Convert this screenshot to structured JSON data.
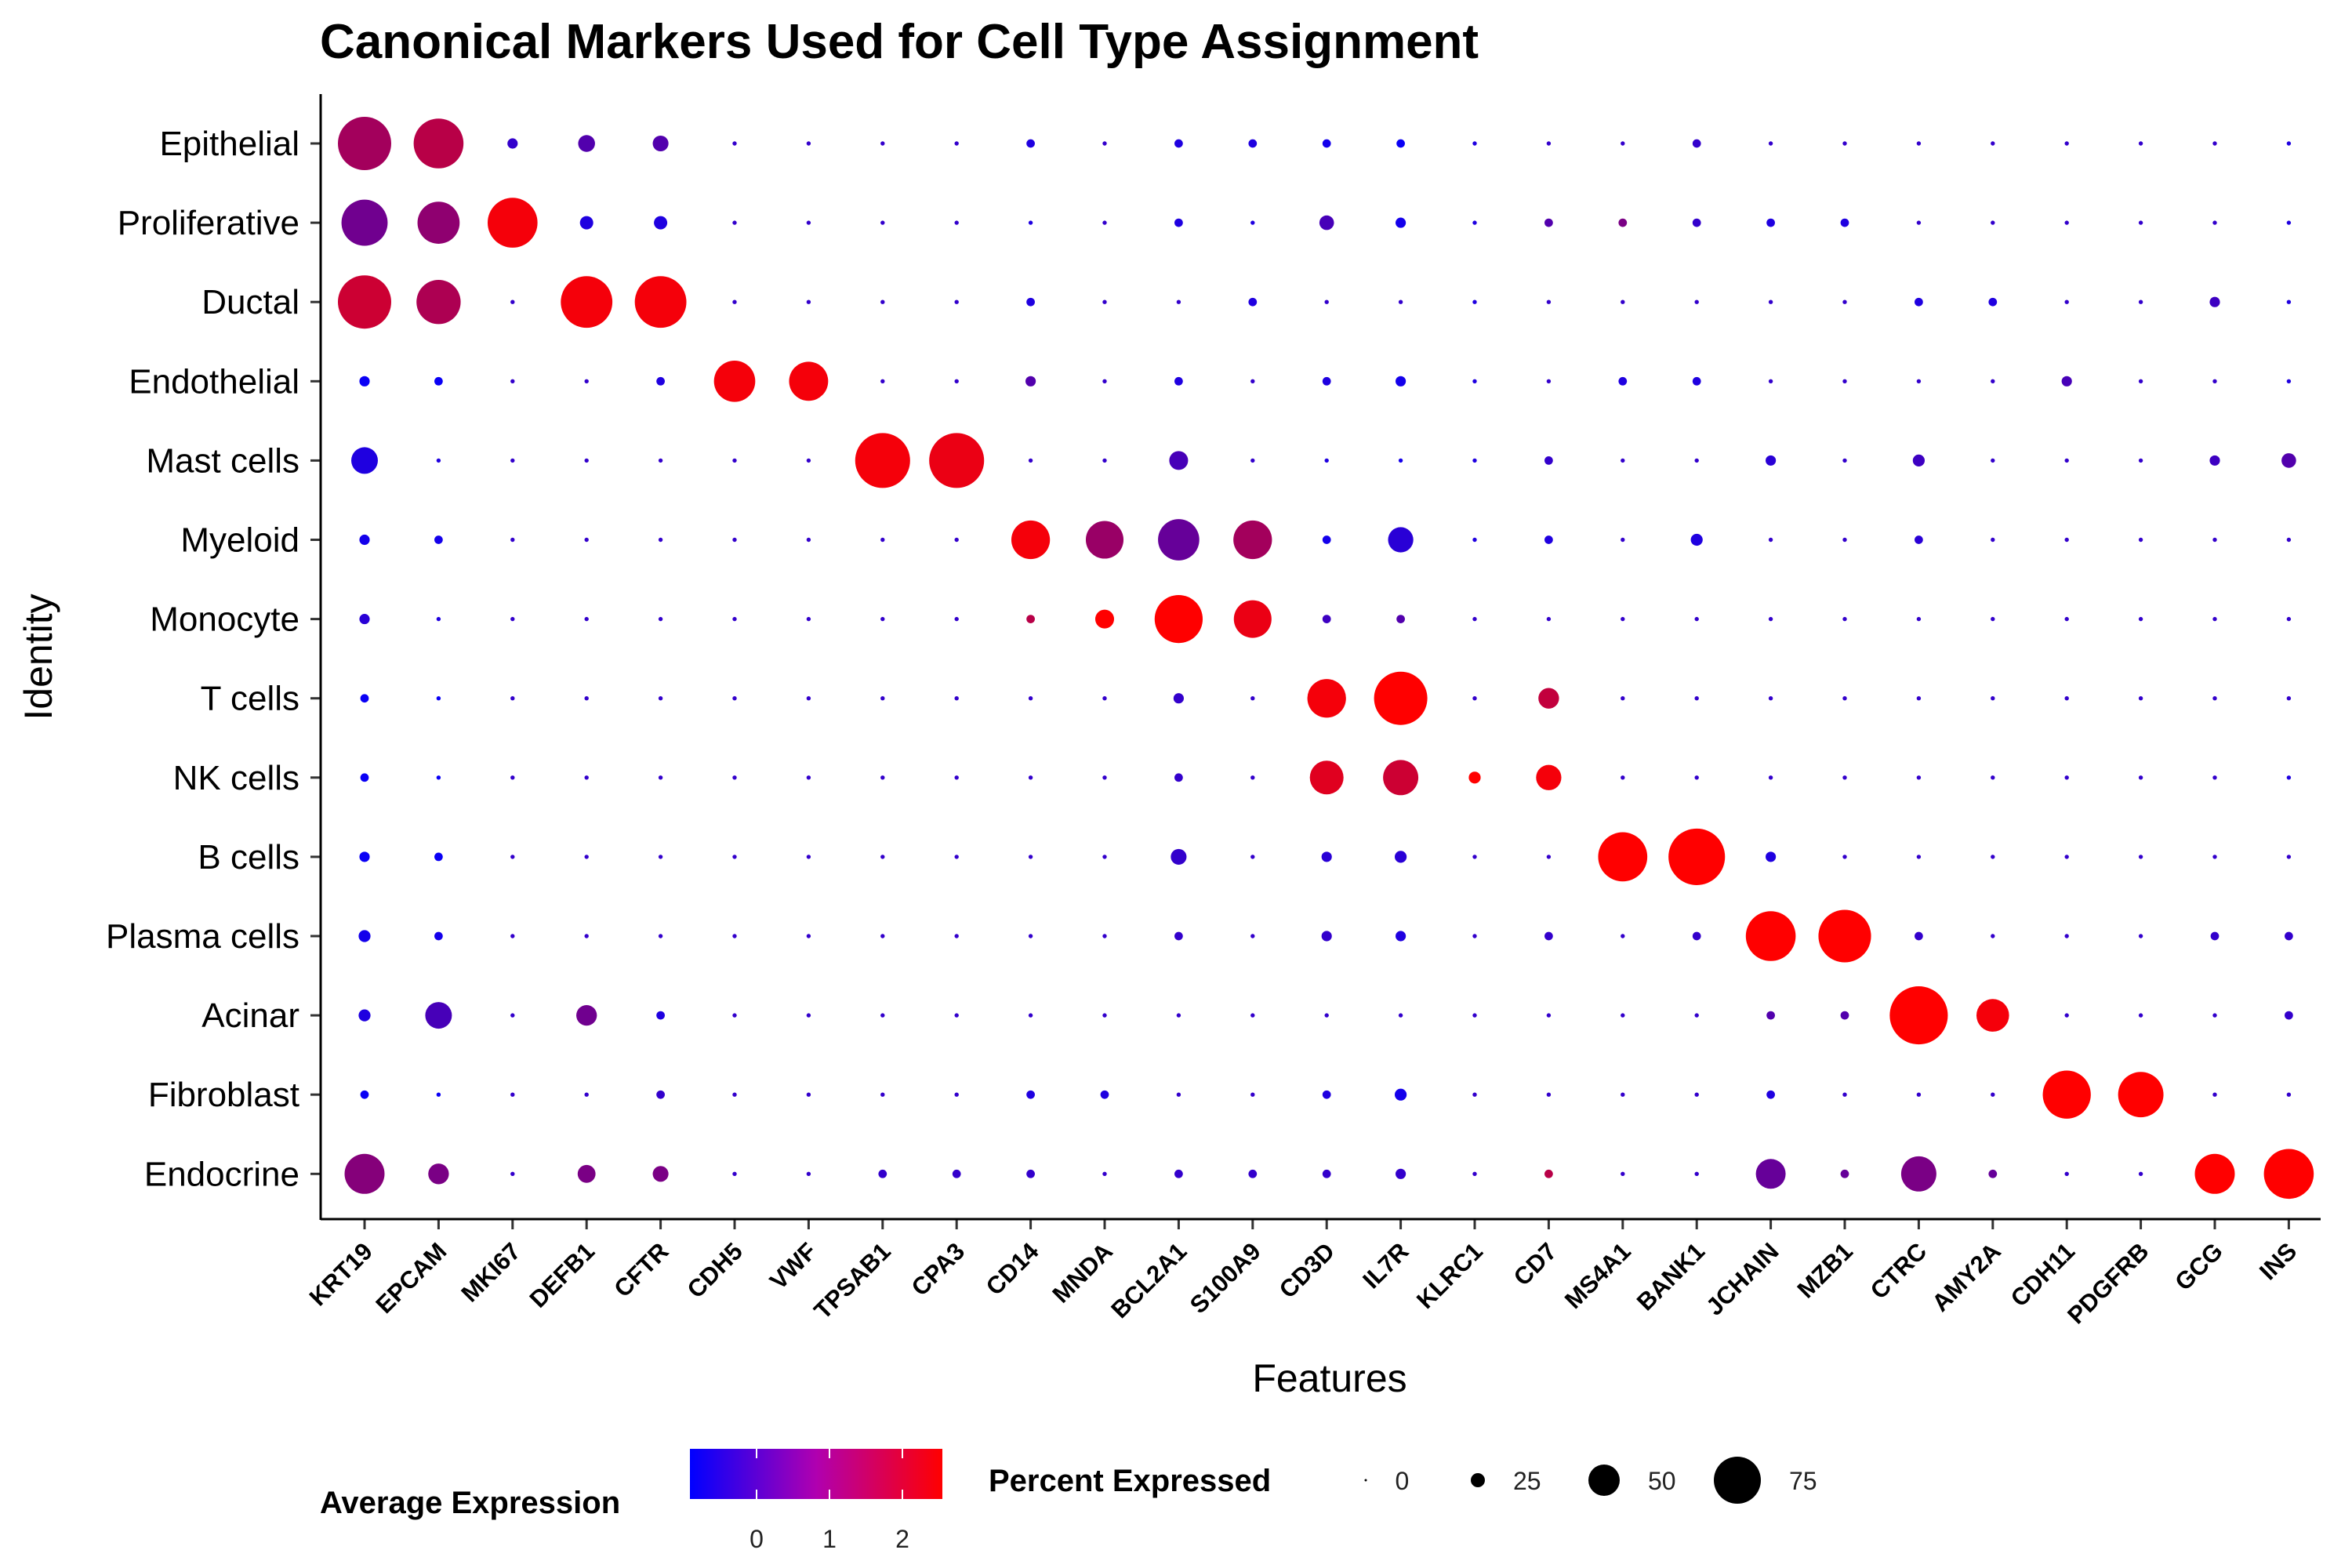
{
  "chart_data": {
    "type": "dotplot",
    "title": "Canonical Markers Used for Cell Type Assignment",
    "xlabel": "Features",
    "ylabel": "Identity",
    "features": [
      "KRT19",
      "EPCAM",
      "MKI67",
      "DEFB1",
      "CFTR",
      "CDH5",
      "VWF",
      "TPSAB1",
      "CPA3",
      "CD14",
      "MNDA",
      "BCL2A1",
      "S100A9",
      "CD3D",
      "IL7R",
      "KLRC1",
      "CD7",
      "MS4A1",
      "BANK1",
      "JCHAIN",
      "MZB1",
      "CTRC",
      "AMY2A",
      "CDH11",
      "PDGFRB",
      "GCG",
      "INS"
    ],
    "identities": [
      "Epithelial",
      "Proliferative",
      "Ductal",
      "Endothelial",
      "Mast cells",
      "Myeloid",
      "Monocyte",
      "T cells",
      "NK cells",
      "B cells",
      "Plasma cells",
      "Acinar",
      "Fibroblast",
      "Endocrine"
    ],
    "percent_expressed": [
      [
        80,
        70,
        3,
        8,
        7,
        0.5,
        0.5,
        0.5,
        0.5,
        2,
        0.5,
        2,
        2,
        2,
        2,
        0.5,
        0.5,
        0.5,
        2,
        0.5,
        0.5,
        0.5,
        0.5,
        0.5,
        0.5,
        0.5,
        0.5
      ],
      [
        60,
        50,
        70,
        5,
        5,
        0.5,
        0.5,
        0.5,
        0.5,
        0.5,
        0.5,
        2,
        0.5,
        6,
        3,
        0.5,
        2,
        2,
        2,
        2,
        2,
        0.5,
        0.5,
        0.5,
        0.5,
        0.5,
        0.5
      ],
      [
        80,
        55,
        0.5,
        75,
        75,
        0.5,
        0.5,
        0.5,
        0.5,
        2,
        0.5,
        0.5,
        2,
        0.5,
        0.5,
        0.5,
        0.5,
        0.5,
        0.5,
        0.5,
        0.5,
        2,
        2,
        0.5,
        0.5,
        3,
        0.5
      ],
      [
        3,
        2,
        0.5,
        0.5,
        2,
        48,
        43,
        0.5,
        0.5,
        3,
        0.5,
        2,
        0.5,
        2,
        3,
        0.5,
        0.5,
        2,
        2,
        0.5,
        0.5,
        0.5,
        0.5,
        3,
        0.5,
        0.5,
        0.5
      ],
      [
        20,
        0.5,
        0.5,
        0.5,
        0.5,
        0.5,
        0.5,
        85,
        85,
        0.5,
        0.5,
        10,
        0.5,
        0.5,
        0.5,
        0.5,
        2,
        0.5,
        0.5,
        3,
        0.5,
        4,
        0.5,
        0.5,
        0.5,
        3,
        6
      ],
      [
        3,
        2,
        0.5,
        0.5,
        0.5,
        0.5,
        0.5,
        0.5,
        0.5,
        42,
        40,
        48,
        42,
        2,
        18,
        0.5,
        2,
        0.5,
        4,
        0.5,
        0.5,
        2,
        0.5,
        0.5,
        0.5,
        0.5,
        0.5
      ],
      [
        3,
        0.5,
        0.5,
        0.5,
        0.5,
        0.5,
        0.5,
        0.5,
        0.5,
        2,
        10,
        65,
        40,
        2,
        2,
        0.5,
        0.5,
        0.5,
        0.5,
        0.5,
        0.5,
        0.5,
        0.5,
        0.5,
        0.5,
        0.5,
        0.5
      ],
      [
        2,
        0.5,
        0.5,
        0.5,
        0.5,
        0.5,
        0.5,
        0.5,
        0.5,
        0.5,
        0.5,
        3,
        0.5,
        42,
        80,
        0.5,
        12,
        0.5,
        0.5,
        0.5,
        0.5,
        0.5,
        0.5,
        0.5,
        0.5,
        0.5,
        0.5
      ],
      [
        2,
        0.5,
        0.5,
        0.5,
        0.5,
        0.5,
        0.5,
        0.5,
        0.5,
        0.5,
        0.5,
        2,
        0.5,
        32,
        35,
        4,
        18,
        0.5,
        0.5,
        0.5,
        0.5,
        0.5,
        0.5,
        0.5,
        0.5,
        0.5,
        0.5
      ],
      [
        3,
        2,
        0.5,
        0.5,
        0.5,
        0.5,
        0.5,
        0.5,
        0.5,
        0.5,
        0.5,
        7,
        0.5,
        3,
        4,
        0.5,
        0.5,
        68,
        90,
        3,
        0.5,
        0.5,
        0.5,
        0.5,
        0.5,
        0.5,
        0.5
      ],
      [
        4,
        2,
        0.5,
        0.5,
        0.5,
        0.5,
        0.5,
        0.5,
        0.5,
        0.5,
        0.5,
        2,
        0.5,
        3,
        3,
        0.5,
        2,
        0.5,
        2,
        70,
        78,
        2,
        0.5,
        0.5,
        0.5,
        2,
        2
      ],
      [
        4,
        20,
        0.5,
        12,
        2,
        0.5,
        0.5,
        0.5,
        0.5,
        0.5,
        0.5,
        0.5,
        0.5,
        0.5,
        0.5,
        0.5,
        0.5,
        0.5,
        0.5,
        2,
        2,
        95,
        30,
        0.5,
        0.5,
        0.5,
        2
      ],
      [
        2,
        0.5,
        0.5,
        0.5,
        2,
        0.5,
        0.5,
        0.5,
        0.5,
        2,
        2,
        0.5,
        0.5,
        2,
        4,
        0.5,
        0.5,
        0.5,
        0.5,
        2,
        0.5,
        0.5,
        0.5,
        65,
        58,
        0.5,
        0.5
      ],
      [
        45,
        12,
        0.5,
        9,
        7,
        0.5,
        0.5,
        2,
        2,
        2,
        0.5,
        2,
        2,
        2,
        3,
        0.5,
        2,
        0.5,
        0.5,
        25,
        2,
        35,
        2,
        0.5,
        0.5,
        45,
        70
      ]
    ],
    "average_expression": [
      [
        1.6,
        1.8,
        0.5,
        0.8,
        0.8,
        0.5,
        0.5,
        0.5,
        0.5,
        0.3,
        0.5,
        0.3,
        0.3,
        0.2,
        0.1,
        0.3,
        0.5,
        0.5,
        0.5,
        0.5,
        0.5,
        0.5,
        0.5,
        0.5,
        0.5,
        0.5,
        0.3
      ],
      [
        1.1,
        1.4,
        2.4,
        0.3,
        0.3,
        0.5,
        0.5,
        0.5,
        0.5,
        0.3,
        0.5,
        0.3,
        0.3,
        0.7,
        0.2,
        0.3,
        0.8,
        1.2,
        0.5,
        0.3,
        0.3,
        0.5,
        0.5,
        0.5,
        0.5,
        0.5,
        0.3
      ],
      [
        2.0,
        1.7,
        0.5,
        2.4,
        2.4,
        0.5,
        0.5,
        0.5,
        0.5,
        0.3,
        0.5,
        0.5,
        0.3,
        0.5,
        0.5,
        0.3,
        0.5,
        0.5,
        0.5,
        0.5,
        0.5,
        0.3,
        0.3,
        0.5,
        0.5,
        0.6,
        0.3
      ],
      [
        0.1,
        0.1,
        0.5,
        0.5,
        0.3,
        2.4,
        2.4,
        0.5,
        0.5,
        0.8,
        0.5,
        0.3,
        0.5,
        0.3,
        0.2,
        0.3,
        0.5,
        0.3,
        0.3,
        0.5,
        0.5,
        0.5,
        0.5,
        0.7,
        0.5,
        0.5,
        0.3
      ],
      [
        0.3,
        0.3,
        0.5,
        0.5,
        0.5,
        0.5,
        0.5,
        2.4,
        2.3,
        0.5,
        0.5,
        0.7,
        0.5,
        0.3,
        0.2,
        0.3,
        0.5,
        0.5,
        0.5,
        0.4,
        0.5,
        0.6,
        0.5,
        0.5,
        0.5,
        0.6,
        0.8
      ],
      [
        0.2,
        0.2,
        0.5,
        0.5,
        0.5,
        0.5,
        0.5,
        0.5,
        0.5,
        2.4,
        1.5,
        1.0,
        1.6,
        0.2,
        0.4,
        0.3,
        0.3,
        0.5,
        0.3,
        0.5,
        0.5,
        0.4,
        0.5,
        0.5,
        0.5,
        0.5,
        0.5
      ],
      [
        0.4,
        0.3,
        0.5,
        0.5,
        0.5,
        0.5,
        0.5,
        0.5,
        0.5,
        1.8,
        2.5,
        2.5,
        2.3,
        0.6,
        0.8,
        0.5,
        0.5,
        0.5,
        0.5,
        0.5,
        0.5,
        0.5,
        0.5,
        0.5,
        0.5,
        0.5,
        0.5
      ],
      [
        0.1,
        0.1,
        0.5,
        0.5,
        0.5,
        0.5,
        0.5,
        0.5,
        0.5,
        0.5,
        0.5,
        0.5,
        0.5,
        2.4,
        2.5,
        0.5,
        1.9,
        0.5,
        0.5,
        0.5,
        0.5,
        0.5,
        0.5,
        0.5,
        0.5,
        0.5,
        0.5
      ],
      [
        0.1,
        0.1,
        0.5,
        0.5,
        0.5,
        0.5,
        0.5,
        0.5,
        0.5,
        0.5,
        0.5,
        0.5,
        0.5,
        2.2,
        2.0,
        2.5,
        2.4,
        0.5,
        0.5,
        0.5,
        0.5,
        0.5,
        0.5,
        0.5,
        0.5,
        0.5,
        0.3
      ],
      [
        0.1,
        0.1,
        0.5,
        0.5,
        0.5,
        0.5,
        0.5,
        0.5,
        0.5,
        0.5,
        0.5,
        0.5,
        0.5,
        0.4,
        0.4,
        0.5,
        0.5,
        2.5,
        2.5,
        0.3,
        0.5,
        0.5,
        0.5,
        0.5,
        0.5,
        0.5,
        0.5
      ],
      [
        0.2,
        0.2,
        0.5,
        0.5,
        0.5,
        0.5,
        0.5,
        0.5,
        0.5,
        0.5,
        0.5,
        0.5,
        0.5,
        0.5,
        0.3,
        0.5,
        0.5,
        0.5,
        0.5,
        2.5,
        2.5,
        0.5,
        0.5,
        0.5,
        0.5,
        0.5,
        0.5
      ],
      [
        0.3,
        0.7,
        0.5,
        1.1,
        0.3,
        0.5,
        0.5,
        0.5,
        0.5,
        0.5,
        0.5,
        0.5,
        0.5,
        0.5,
        0.5,
        0.5,
        0.5,
        0.5,
        0.5,
        0.8,
        0.8,
        2.5,
        2.4,
        0.5,
        0.5,
        0.5,
        0.5
      ],
      [
        0.1,
        0.1,
        0.5,
        0.5,
        0.5,
        0.5,
        0.5,
        0.5,
        0.5,
        0.3,
        0.3,
        0.5,
        0.5,
        0.3,
        0.2,
        0.5,
        0.5,
        0.5,
        0.5,
        0.3,
        0.5,
        0.5,
        0.5,
        2.5,
        2.5,
        0.5,
        0.5
      ],
      [
        1.3,
        1.2,
        0.5,
        1.2,
        1.2,
        0.5,
        0.5,
        0.5,
        0.5,
        0.5,
        0.5,
        0.5,
        0.5,
        0.5,
        0.5,
        0.5,
        1.8,
        0.5,
        0.5,
        1.0,
        1.0,
        1.2,
        1.0,
        0.5,
        0.5,
        2.5,
        2.5
      ]
    ],
    "color_legend": {
      "title": "Average Expression",
      "ticks": [
        "0",
        "1",
        "2"
      ],
      "low_color": "#0000ff",
      "high_color": "#ff0000"
    },
    "size_legend": {
      "title": "Percent Expressed",
      "ticks": [
        "0",
        "25",
        "50",
        "75"
      ]
    }
  }
}
